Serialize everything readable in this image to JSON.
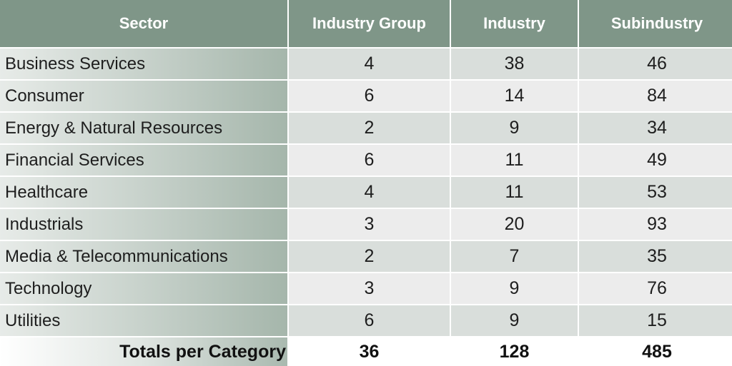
{
  "table": {
    "headers": [
      "Sector",
      "Industry Group",
      "Industry",
      "Subindustry"
    ],
    "rows": [
      {
        "sector": "Business Services",
        "industry_group": "4",
        "industry": "38",
        "subindustry": "46"
      },
      {
        "sector": "Consumer",
        "industry_group": "6",
        "industry": "14",
        "subindustry": "84"
      },
      {
        "sector": "Energy & Natural Resources",
        "industry_group": "2",
        "industry": "9",
        "subindustry": "34"
      },
      {
        "sector": "Financial Services",
        "industry_group": "6",
        "industry": "11",
        "subindustry": "49"
      },
      {
        "sector": "Healthcare",
        "industry_group": "4",
        "industry": "11",
        "subindustry": "53"
      },
      {
        "sector": "Industrials",
        "industry_group": "3",
        "industry": "20",
        "subindustry": "93"
      },
      {
        "sector": "Media & Telecommunications",
        "industry_group": "2",
        "industry": "7",
        "subindustry": "35"
      },
      {
        "sector": "Technology",
        "industry_group": "3",
        "industry": "9",
        "subindustry": "76"
      },
      {
        "sector": "Utilities",
        "industry_group": "6",
        "industry": "9",
        "subindustry": "15"
      }
    ],
    "totals": {
      "label": "Totals per Category",
      "industry_group": "36",
      "industry": "128",
      "subindustry": "485"
    }
  },
  "colors": {
    "header_bg": "#7f9688",
    "row_alt_1": "#d9dedb",
    "row_alt_2": "#ececec",
    "sector_gradient_end": "#a5b6ab"
  }
}
